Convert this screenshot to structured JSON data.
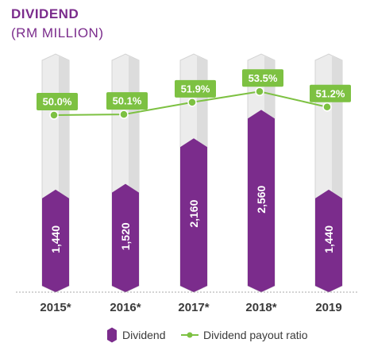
{
  "chart_data": {
    "type": "bar",
    "title": "DIVIDEND",
    "subtitle": "(RM MILLION)",
    "categories": [
      "2015*",
      "2016*",
      "2017*",
      "2018*",
      "2019"
    ],
    "series": [
      {
        "name": "Dividend",
        "type": "bar",
        "values": [
          1440,
          1520,
          2160,
          2560,
          1440
        ],
        "labels": [
          "1,440",
          "1,520",
          "2,160",
          "2,560",
          "1,440"
        ]
      },
      {
        "name": "Dividend payout ratio",
        "type": "line",
        "values": [
          50.0,
          50.1,
          51.9,
          53.5,
          51.2
        ],
        "labels": [
          "50.0%",
          "50.1%",
          "51.9%",
          "53.5%",
          "51.2%"
        ]
      }
    ],
    "ylim": [
      0,
      3250
    ],
    "grid": false,
    "legend_position": "bottom"
  },
  "colors": {
    "bar": "#7b2c8c",
    "line": "#7dc142",
    "column_bg": "#ececec",
    "title": "#7b2c8c"
  }
}
